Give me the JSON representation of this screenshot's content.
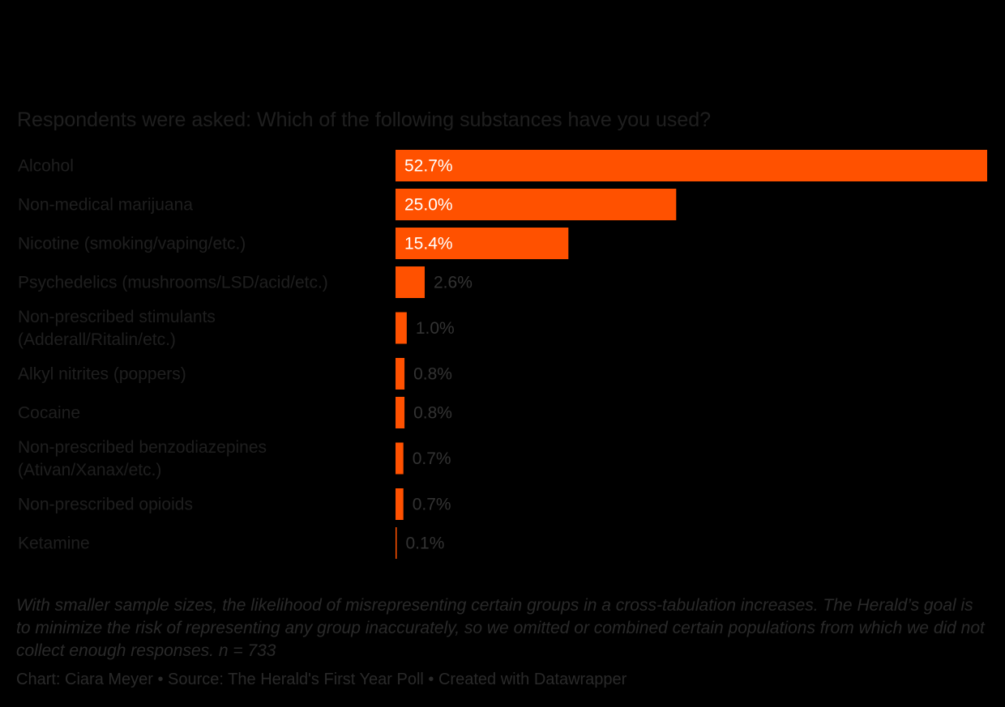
{
  "chart_data": {
    "type": "bar",
    "orientation": "horizontal",
    "title": "",
    "subtitle": "Respondents were asked: Which of the following substances have you used?",
    "categories": [
      [
        "Alcohol"
      ],
      [
        "Non-medical marijuana"
      ],
      [
        "Nicotine (smoking/vaping/etc.)"
      ],
      [
        "Psychedelics (mushrooms/LSD/acid/etc.)"
      ],
      [
        "Non-prescribed stimulants",
        "(Adderall/Ritalin/etc.)"
      ],
      [
        "Alkyl nitrites (poppers)"
      ],
      [
        "Cocaine"
      ],
      [
        "Non-prescribed benzodiazepines",
        "(Ativan/Xanax/etc.)"
      ],
      [
        "Non-prescribed opioids"
      ],
      [
        "Ketamine"
      ]
    ],
    "values": [
      52.7,
      25.0,
      15.4,
      2.6,
      1.0,
      0.8,
      0.8,
      0.7,
      0.7,
      0.1
    ],
    "value_suffix": "%",
    "xlim": [
      0,
      52.7
    ],
    "grid": false,
    "bar_color": "#ff5100"
  },
  "notes": "With smaller sample sizes, the likelihood of misrepresenting certain groups in a cross-tabulation increases. The Herald’s goal is to minimize the risk of representing any group inaccurately, so we omitted or combined certain populations from which we did not collect enough responses. n = 733",
  "credits": "Chart: Ciara Meyer • Source: The Herald's First Year Poll • Created with Datawrapper"
}
